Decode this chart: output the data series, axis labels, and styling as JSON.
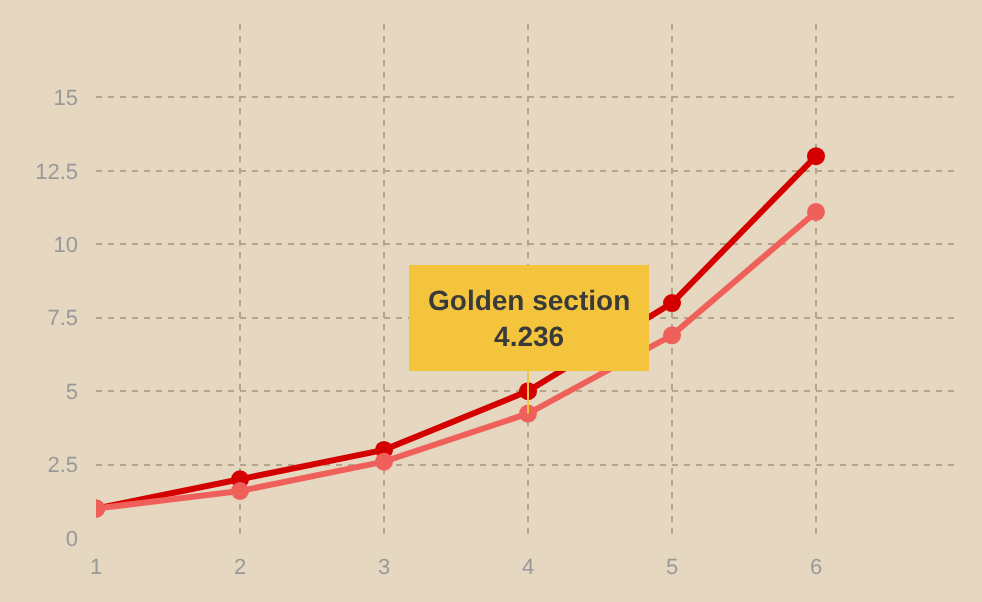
{
  "chart_data": {
    "type": "line",
    "x": [
      1,
      2,
      3,
      4,
      5,
      6
    ],
    "series": [
      {
        "color": "#d40000",
        "values": [
          1,
          2,
          3,
          5,
          8,
          13
        ]
      },
      {
        "color": "#f0605a",
        "values": [
          1,
          1.6,
          2.6,
          4.236,
          6.9,
          11.1
        ]
      }
    ],
    "xlim": [
      1,
      7
    ],
    "xticks": [
      1,
      2,
      3,
      4,
      5,
      6
    ],
    "ylim": [
      0,
      17.5
    ],
    "yticks": [
      0,
      2.5,
      5,
      7.5,
      10,
      12.5,
      15
    ],
    "grid": true,
    "marker": "circle",
    "line_style": "solid",
    "annotations": [
      {
        "text": "Golden section\n4.236",
        "x": 4,
        "y": 4.236
      }
    ]
  }
}
